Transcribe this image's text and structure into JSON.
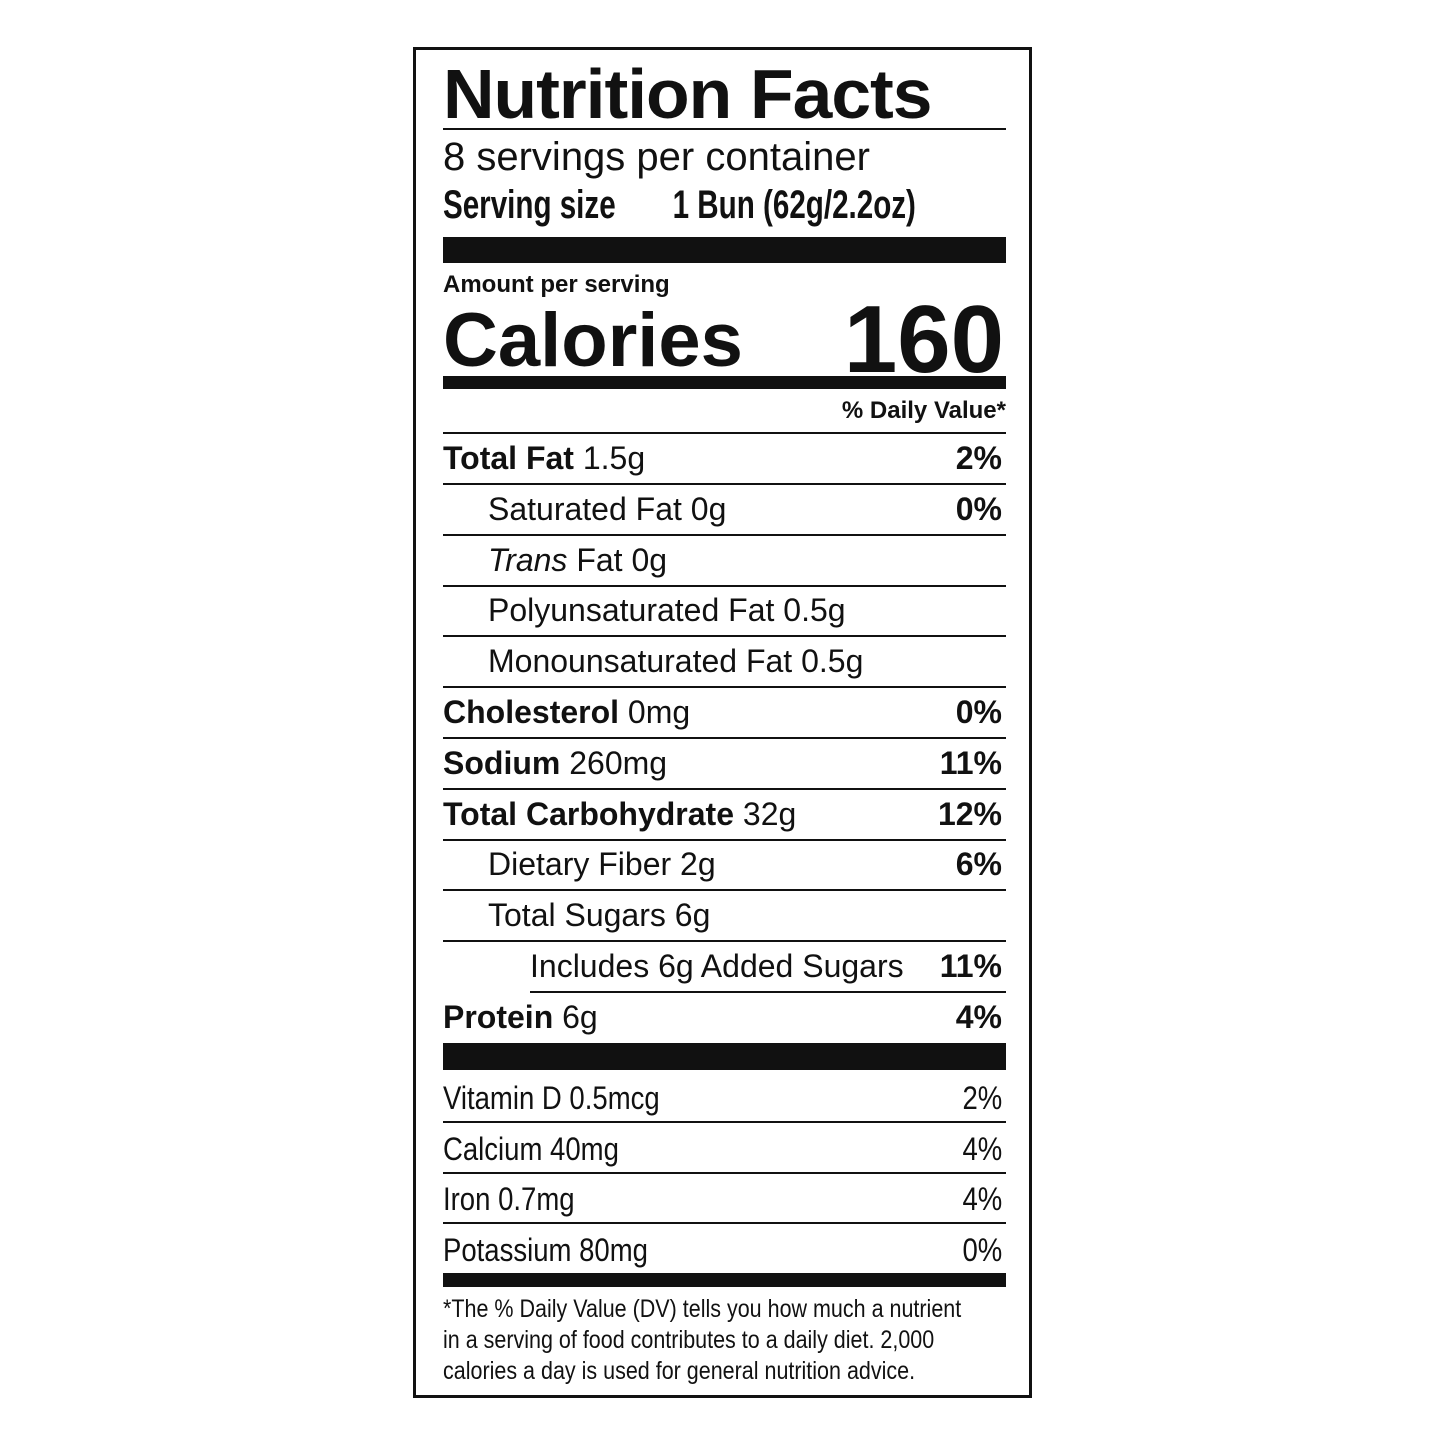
{
  "title": "Nutrition Facts",
  "servings_per_container": "8 servings per container",
  "serving_size_label": "Serving size",
  "serving_size_value": "1 Bun (62g/2.2oz)",
  "amount_per_serving": "Amount per serving",
  "calories_label": "Calories",
  "calories_value": "160",
  "daily_value_header": "% Daily Value*",
  "nutrients": [
    {
      "label": "Total Fat",
      "amount": "1.5g",
      "dv": "2%",
      "level": 0
    },
    {
      "label": "Saturated Fat",
      "amount": "0g",
      "dv": "0%",
      "level": 1
    },
    {
      "label_italic": "Trans",
      "label": "Fat",
      "amount": "0g",
      "dv": "",
      "level": 1
    },
    {
      "label": "Polyunsaturated Fat",
      "amount": "0.5g",
      "dv": "",
      "level": 1
    },
    {
      "label": "Monounsaturated Fat",
      "amount": "0.5g",
      "dv": "",
      "level": 1
    },
    {
      "label": "Cholesterol",
      "amount": "0mg",
      "dv": "0%",
      "level": 0
    },
    {
      "label": "Sodium",
      "amount": "260mg",
      "dv": "11%",
      "level": 0
    },
    {
      "label": "Total Carbohydrate",
      "amount": "32g",
      "dv": "12%",
      "level": 0
    },
    {
      "label": "Dietary Fiber",
      "amount": "2g",
      "dv": "6%",
      "level": 1
    },
    {
      "label": "Total Sugars",
      "amount": "6g",
      "dv": "",
      "level": 1
    },
    {
      "label": "Includes 6g Added Sugars",
      "amount": "",
      "dv": "11%",
      "level": 2
    },
    {
      "label": "Protein",
      "amount": "6g",
      "dv": "4%",
      "level": 0
    }
  ],
  "vitamins": [
    {
      "label": "Vitamin D 0.5mcg",
      "dv": "2%"
    },
    {
      "label": "Calcium 40mg",
      "dv": "4%"
    },
    {
      "label": "Iron 0.7mg",
      "dv": "4%"
    },
    {
      "label": "Potassium 80mg",
      "dv": "0%"
    }
  ],
  "footnote": [
    "*The % Daily Value (DV) tells you how much a nutrient",
    "in a serving of food contributes to a daily diet. 2,000",
    "calories a day is used for general nutrition advice."
  ]
}
